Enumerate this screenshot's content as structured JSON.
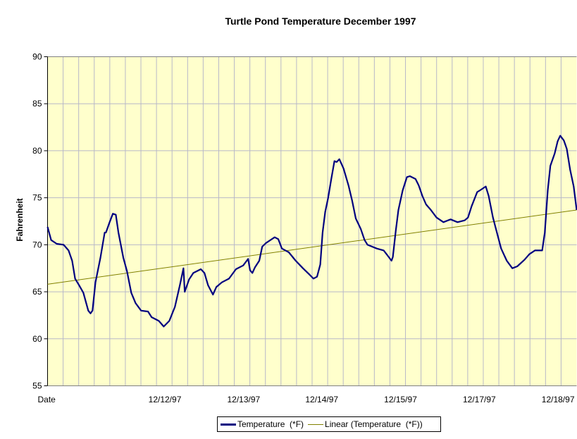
{
  "chart_data": {
    "type": "line",
    "title": "Turtle Pond Temperature December 1997",
    "xlabel": "Date",
    "ylabel": "Fahrenheit",
    "x_unit": "hours from start",
    "xlim": [
      0,
      161.2
    ],
    "ylim": [
      55,
      90
    ],
    "yticks": [
      55,
      60,
      65,
      70,
      75,
      80,
      85,
      90
    ],
    "xtick_labels": [
      {
        "label": "Date",
        "x": 0
      },
      {
        "label": "12/12/97",
        "x": 23.6
      },
      {
        "label": "12/13/97",
        "x": 47.6
      },
      {
        "label": "12/14/97",
        "x": 71.4
      },
      {
        "label": "12/15/97",
        "x": 95.4
      },
      {
        "label": "12/17/97",
        "x": 119.4
      },
      {
        "label": "12/18/97",
        "x": 143.4
      }
    ],
    "grid": true,
    "plot_background": "#FFFFCC",
    "legend_position": "bottom",
    "series": [
      {
        "name": "Temperature  (*F)",
        "color": "#000080",
        "x": [
          0,
          1.1,
          2.8,
          4.9,
          6.4,
          7.5,
          8.4,
          9.6,
          10.9,
          12.4,
          13.1,
          13.7,
          14.6,
          16.1,
          17.4,
          17.8,
          18.9,
          19.9,
          20.8,
          21.6,
          23.1,
          24.2,
          25.5,
          26.8,
          28.5,
          30.6,
          31.7,
          33.9,
          35.4,
          37.1,
          38.8,
          40.3,
          41.4,
          41.8,
          43.1,
          44.4,
          46.7,
          47.8,
          48.9,
          50.4,
          51.4,
          53.1,
          55.3,
          57.4,
          59.6,
          61.1,
          61.7,
          62.4,
          63.2,
          64.5,
          65.4,
          66.6,
          69.2,
          70.3,
          71.4,
          73.5,
          75.6,
          77.8,
          79.9,
          81,
          82.1,
          83.1,
          83.8,
          84.6,
          85.5,
          86.4,
          87.4,
          88.1,
          88.9,
          90.2,
          91.7,
          92.8,
          93.9,
          95.4,
          96.6,
          97.5,
          100.3,
          102.4,
          103.5,
          104.8,
          105.2,
          106.1,
          106.9,
          108.2,
          109.5,
          110.4,
          112.1,
          113.1,
          114.2,
          115.3,
          116.8,
          118.5,
          120.6,
          122.8,
          124.9,
          127.1,
          128.1,
          129.2,
          130.9,
          131.8,
          133.5,
          134.4,
          135.7,
          136.9,
          138.2,
          139.9,
          141.6,
          143.1,
          145.3,
          146.8,
          148.5,
          150.7,
          151.5,
          152.4,
          153.2,
          154.5,
          155.4,
          156.2,
          157.3,
          158.2,
          159.2,
          160.3,
          161.2
        ],
        "y": [
          71.9,
          70.5,
          70.1,
          70,
          69.4,
          68.3,
          66.4,
          65.7,
          64.9,
          63,
          62.7,
          63,
          66,
          68.6,
          71.3,
          71.3,
          72.4,
          73.3,
          73.2,
          71.3,
          68.6,
          67.2,
          64.9,
          63.8,
          63,
          62.9,
          62.3,
          61.9,
          61.3,
          61.9,
          63.4,
          65.7,
          67.5,
          65,
          66.3,
          67,
          67.4,
          67,
          65.7,
          64.7,
          65.5,
          66,
          66.4,
          67.4,
          67.8,
          68.5,
          67.3,
          67,
          67.6,
          68.3,
          69.8,
          70.2,
          70.8,
          70.6,
          69.6,
          69.2,
          68.3,
          67.5,
          66.8,
          66.4,
          66.6,
          67.9,
          71.3,
          73.5,
          75,
          76.9,
          78.9,
          78.8,
          79.1,
          78.1,
          76.3,
          74.7,
          72.8,
          71.7,
          70.5,
          70,
          69.6,
          69.4,
          68.9,
          68.3,
          68.7,
          71.5,
          73.7,
          75.8,
          77.2,
          77.3,
          77,
          76.3,
          75.2,
          74.3,
          73.7,
          72.9,
          72.4,
          72.7,
          72.4,
          72.6,
          72.9,
          74.1,
          75.6,
          75.8,
          76.2,
          75.2,
          72.9,
          71.3,
          69.6,
          68.3,
          67.5,
          67.7,
          68.4,
          69,
          69.4,
          69.4,
          71.3,
          75.8,
          78.4,
          79.7,
          81,
          81.6,
          81.1,
          80.2,
          78,
          76.2,
          73.7
        ]
      },
      {
        "name": "Linear (Temperature  (*F))",
        "color": "#808000",
        "x": [
          0,
          161.2
        ],
        "y": [
          65.8,
          73.7
        ]
      }
    ]
  }
}
